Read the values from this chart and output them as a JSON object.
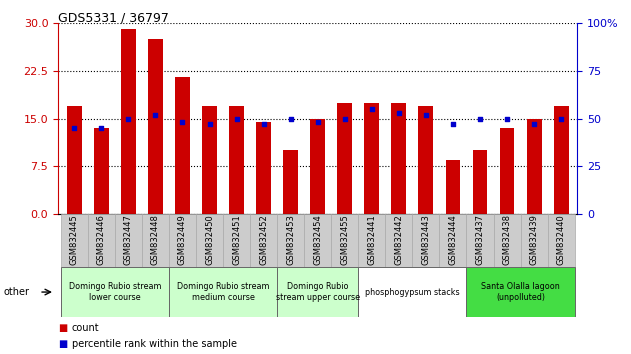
{
  "title": "GDS5331 / 36797",
  "samples": [
    "GSM832445",
    "GSM832446",
    "GSM832447",
    "GSM832448",
    "GSM832449",
    "GSM832450",
    "GSM832451",
    "GSM832452",
    "GSM832453",
    "GSM832454",
    "GSM832455",
    "GSM832441",
    "GSM832442",
    "GSM832443",
    "GSM832444",
    "GSM832437",
    "GSM832438",
    "GSM832439",
    "GSM832440"
  ],
  "counts": [
    17.0,
    13.5,
    29.0,
    27.5,
    21.5,
    17.0,
    17.0,
    14.5,
    10.0,
    15.0,
    17.5,
    17.5,
    17.5,
    17.0,
    8.5,
    10.0,
    13.5,
    15.0,
    17.0
  ],
  "percentiles": [
    45,
    45,
    50,
    52,
    48,
    47,
    50,
    47,
    50,
    48,
    50,
    55,
    53,
    52,
    47,
    50,
    50,
    47,
    50
  ],
  "bar_color": "#cc0000",
  "dot_color": "#0000cc",
  "ylim_left": [
    0,
    30
  ],
  "ylim_right": [
    0,
    100
  ],
  "yticks_left": [
    0,
    7.5,
    15,
    22.5,
    30
  ],
  "yticks_right": [
    0,
    25,
    50,
    75,
    100
  ],
  "groups": [
    {
      "label": "Domingo Rubio stream\nlower course",
      "start": 0,
      "end": 4,
      "color": "#ccffcc"
    },
    {
      "label": "Domingo Rubio stream\nmedium course",
      "start": 4,
      "end": 8,
      "color": "#ccffcc"
    },
    {
      "label": "Domingo Rubio\nstream upper course",
      "start": 8,
      "end": 11,
      "color": "#ccffcc"
    },
    {
      "label": "phosphogypsum stacks",
      "start": 11,
      "end": 15,
      "color": "#ffffff"
    },
    {
      "label": "Santa Olalla lagoon\n(unpolluted)",
      "start": 15,
      "end": 19,
      "color": "#44dd44"
    }
  ],
  "tick_bg_color": "#cccccc"
}
